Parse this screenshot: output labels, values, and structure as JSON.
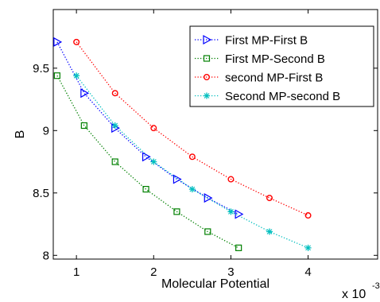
{
  "chart_data": {
    "type": "line",
    "xlabel": "Molecular Potential",
    "ylabel": "B",
    "xlim": [
      0.0007,
      0.0049
    ],
    "ylim": [
      7.97,
      9.97
    ],
    "x_ticks": [
      0.001,
      0.002,
      0.003,
      0.004
    ],
    "x_tick_labels": [
      "1",
      "2",
      "3",
      "4"
    ],
    "y_ticks": [
      8,
      8.5,
      9,
      9.5
    ],
    "y_tick_labels": [
      "8",
      "8.5",
      "9",
      "9.5"
    ],
    "x_exponent_text": {
      "base": "x 10",
      "exp": "-3"
    },
    "grid": false,
    "legend_position": "top-right",
    "series": [
      {
        "name": "First MP-First B",
        "color": "#0000ff",
        "marker": "triangle-right",
        "x": [
          0.00075,
          0.0011,
          0.0015,
          0.0019,
          0.0023,
          0.0027,
          0.0031
        ],
        "y": [
          9.71,
          9.3,
          9.02,
          8.79,
          8.61,
          8.46,
          8.33
        ]
      },
      {
        "name": "First MP-Second B",
        "color": "#008000",
        "marker": "square",
        "x": [
          0.00075,
          0.0011,
          0.0015,
          0.0019,
          0.0023,
          0.0027,
          0.0031
        ],
        "y": [
          9.44,
          9.04,
          8.75,
          8.53,
          8.35,
          8.19,
          8.06
        ]
      },
      {
        "name": "second MP-First B",
        "color": "#ff0000",
        "marker": "circle",
        "x": [
          0.001,
          0.0015,
          0.002,
          0.0025,
          0.003,
          0.0035,
          0.004
        ],
        "y": [
          9.71,
          9.3,
          9.02,
          8.79,
          8.61,
          8.46,
          8.32
        ]
      },
      {
        "name": "Second MP-second B",
        "color": "#00bfbf",
        "marker": "star",
        "x": [
          0.001,
          0.0015,
          0.002,
          0.0025,
          0.003,
          0.0035,
          0.004
        ],
        "y": [
          9.44,
          9.04,
          8.75,
          8.53,
          8.35,
          8.19,
          8.06
        ]
      }
    ]
  }
}
